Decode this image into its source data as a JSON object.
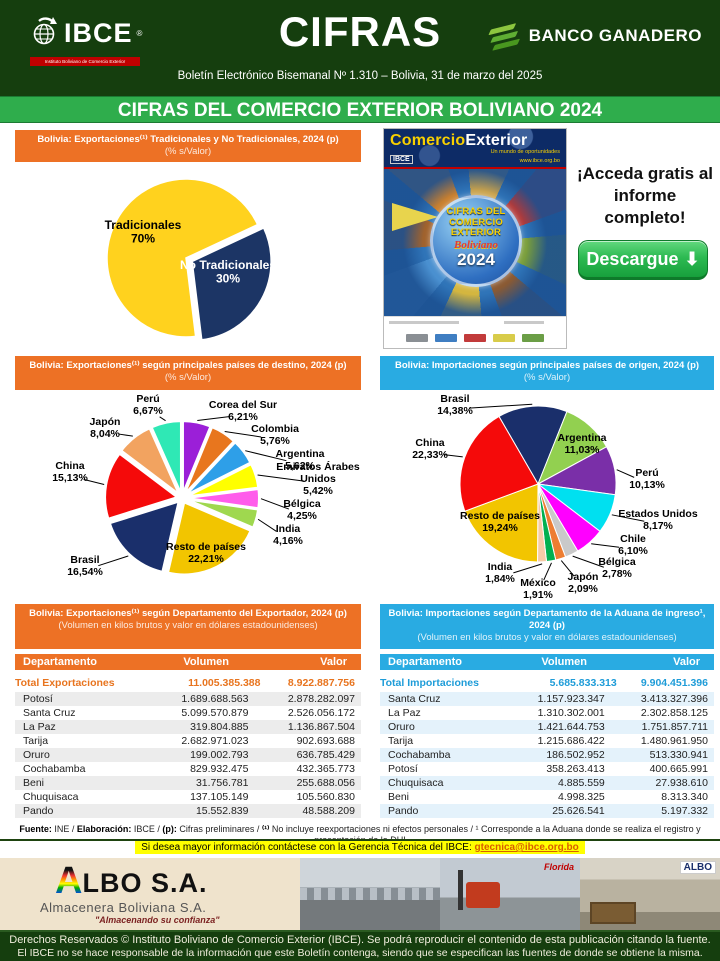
{
  "header": {
    "logo_text": "IBCE",
    "logo_reg": "®",
    "logo_subtext": "Instituto Boliviano de Comercio Exterior",
    "title": "CIFRAS",
    "bank_name": "BANCO GANADERO",
    "bulletin_line": "Boletín Electrónico Bisemanal Nº 1.310 – Bolivia, 31 de marzo del 2025",
    "main_banner": "CIFRAS DEL COMERCIO EXTERIOR BOLIVIANO 2024"
  },
  "promo": {
    "magazine": {
      "brand_a": "Comercio",
      "brand_b": "Exterior",
      "tagline": "Un mundo de oportunidades",
      "logo_text": "IBCE",
      "url": "www.ibce.org.bo",
      "badge_lines": [
        "CIFRAS DEL",
        "COMERCIO",
        "EXTERIOR"
      ],
      "badge_script": "Boliviano",
      "badge_year": "2024"
    },
    "access_text": "¡Acceda gratis al informe completo!",
    "download_label": "Descargue",
    "download_icon": "⬇"
  },
  "chart_data": [
    {
      "type": "pie",
      "title": "Bolivia: Exportaciones⁽¹⁾ Tradicionales y No Tradicionales, 2024 (p)",
      "subtitle": "(% s/Valor)",
      "start_angle": 173,
      "series": [
        {
          "label": "Tradicionales",
          "value": 70,
          "pct_label": "70%",
          "color": "#FFD21E",
          "text_color": "#000000"
        },
        {
          "label": "No Tradicionales",
          "value": 30,
          "pct_label": "30%",
          "color": "#1C3565",
          "text_color": "#FFFFFF",
          "exploded": true
        }
      ]
    },
    {
      "type": "pie",
      "title": "Bolivia: Exportaciones⁽¹⁾ según principales países de destino, 2024 (p)",
      "subtitle": "(% s/Valor)",
      "start_angle": 0,
      "exploded_all": true,
      "slices": [
        {
          "label": "Corea del Sur",
          "pct": "6,21%",
          "value": 6.21,
          "color": "#9B1FD8"
        },
        {
          "label": "Colombia",
          "pct": "5,76%",
          "value": 5.76,
          "color": "#E8761E"
        },
        {
          "label": "Argentina",
          "pct": "5,62%",
          "value": 5.62,
          "color": "#2E9FE8"
        },
        {
          "label": "Emiratos Árabes Unidos",
          "pct": "5,42%",
          "value": 5.42,
          "color": "#FFFF00"
        },
        {
          "label": "Bélgica",
          "pct": "4,25%",
          "value": 4.25,
          "color": "#FF5CEB"
        },
        {
          "label": "India",
          "pct": "4,16%",
          "value": 4.16,
          "color": "#9FD84F"
        },
        {
          "label": "Resto de países",
          "pct": "22,21%",
          "value": 22.21,
          "color": "#F2C500",
          "inside": true
        },
        {
          "label": "Brasil",
          "pct": "16,54%",
          "value": 16.54,
          "color": "#1A2F6B"
        },
        {
          "label": "China",
          "pct": "15,13%",
          "value": 15.13,
          "color": "#F50A0A"
        },
        {
          "label": "Japón",
          "pct": "8,04%",
          "value": 8.04,
          "color": "#F2A360"
        },
        {
          "label": "Perú",
          "pct": "6,67%",
          "value": 6.67,
          "color": "#2FE8B5"
        }
      ]
    },
    {
      "type": "pie",
      "title": "Bolivia: Importaciones según principales países de origen, 2024 (p)",
      "subtitle": "(% s/Valor)",
      "start_angle": 330,
      "slices": [
        {
          "label": "Brasil",
          "pct": "14,38%",
          "value": 14.38,
          "color": "#1A2F6B"
        },
        {
          "label": "Argentina",
          "pct": "11,03%",
          "value": 11.03,
          "color": "#92D050",
          "inside": true
        },
        {
          "label": "Perú",
          "pct": "10,13%",
          "value": 10.13,
          "color": "#7A2FA8"
        },
        {
          "label": "Estados Unidos",
          "pct": "8,17%",
          "value": 8.17,
          "color": "#00E0F0"
        },
        {
          "label": "Chile",
          "pct": "6,10%",
          "value": 6.1,
          "color": "#FF00FF"
        },
        {
          "label": "Bélgica",
          "pct": "2,78%",
          "value": 2.78,
          "color": "#C9C9C9"
        },
        {
          "label": "Japón",
          "pct": "2,09%",
          "value": 2.09,
          "color": "#ED7D31"
        },
        {
          "label": "México",
          "pct": "1,91%",
          "value": 1.91,
          "color": "#00B050"
        },
        {
          "label": "India",
          "pct": "1,84%",
          "value": 1.84,
          "color": "#F5CBA7"
        },
        {
          "label": "Resto de países",
          "pct": "19,24%",
          "value": 19.24,
          "color": "#F2C500",
          "inside": true
        },
        {
          "label": "China",
          "pct": "22,33%",
          "value": 22.33,
          "color": "#F50A0A"
        }
      ]
    }
  ],
  "tables": {
    "exports": {
      "title": "Bolivia: Exportaciones⁽¹⁾ según Departamento del Exportador, 2024 (p)",
      "subtitle": "(Volumen en kilos brutos y valor en dólares estadounidenses)",
      "columns": [
        "Departamento",
        "Volumen",
        "Valor"
      ],
      "total": {
        "label": "Total Exportaciones",
        "volumen": "11.005.385.388",
        "valor": "8.922.887.756"
      },
      "rows": [
        [
          "Potosí",
          "1.689.688.563",
          "2.878.282.097"
        ],
        [
          "Santa Cruz",
          "5.099.570.879",
          "2.526.056.172"
        ],
        [
          "La Paz",
          "319.804.885",
          "1.136.867.504"
        ],
        [
          "Tarija",
          "2.682.971.023",
          "902.693.688"
        ],
        [
          "Oruro",
          "199.002.793",
          "636.785.429"
        ],
        [
          "Cochabamba",
          "829.932.475",
          "432.365.773"
        ],
        [
          "Beni",
          "31.756.781",
          "255.688.056"
        ],
        [
          "Chuquisaca",
          "137.105.149",
          "105.560.830"
        ],
        [
          "Pando",
          "15.552.839",
          "48.588.209"
        ]
      ]
    },
    "imports": {
      "title": "Bolivia: Importaciones según Departamento de la Aduana de ingreso¹, 2024 (p)",
      "subtitle": "(Volumen en kilos brutos y valor en dólares estadounidenses)",
      "columns": [
        "Departamento",
        "Volumen",
        "Valor"
      ],
      "total": {
        "label": "Total Importaciones",
        "volumen": "5.685.833.313",
        "valor": "9.904.451.396"
      },
      "rows": [
        [
          "Santa Cruz",
          "1.157.923.347",
          "3.413.327.396"
        ],
        [
          "La Paz",
          "1.310.302.001",
          "2.302.858.125"
        ],
        [
          "Oruro",
          "1.421.644.753",
          "1.751.857.711"
        ],
        [
          "Tarija",
          "1.215.686.422",
          "1.480.961.950"
        ],
        [
          "Cochabamba",
          "186.502.952",
          "513.330.941"
        ],
        [
          "Potosí",
          "358.263.413",
          "400.665.991"
        ],
        [
          "Chuquisaca",
          "4.885.559",
          "27.938.610"
        ],
        [
          "Beni",
          "4.998.325",
          "8.313.340"
        ],
        [
          "Pando",
          "25.626.541",
          "5.197.332"
        ]
      ]
    }
  },
  "footnote": {
    "f1_label": "Fuente:",
    "f1": " INE / ",
    "f2_label": "Elaboración:",
    "f2": " IBCE / ",
    "f3_label": "(p):",
    "f3": " Cifras preliminares / ",
    "f4_label": "⁽¹⁾",
    "f4": " No incluye reexportaciones ni efectos personales / ",
    "f5_label": "¹",
    "f5": " Corresponde a la Aduana donde se realiza el registro y presentación de la DUI"
  },
  "contact": {
    "text": "Si desea mayor información contáctese con la Gerencia Técnica del IBCE: ",
    "email": "gtecnica@ibce.org.bo"
  },
  "ad": {
    "brand_initial": "A",
    "brand": "LBO S.A.",
    "name": "Almacenera Boliviana S.A.",
    "tagline": "\"Almacenando su confianza\"",
    "photo_label_1": "Florida",
    "photo_label_2": "ALBO"
  },
  "footer": {
    "line1": "Derechos Reservados © Instituto Boliviano de Comercio Exterior (IBCE). Se podrá reproducir el contenido de esta publicación citando la fuente.",
    "line2": "El IBCE no se hace responsable de la información que este Boletín contenga, siendo que se especifican las fuentes de donde se obtiene la misma."
  },
  "colors": {
    "dark_green": "#153E0E",
    "bar_green": "#2FAD4C",
    "orange_banner": "#ED7125",
    "blue_banner": "#29ABE2",
    "highlight_yellow": "#FFFF00",
    "link_orange": "#D95E00",
    "red_strip": "#C00000"
  }
}
